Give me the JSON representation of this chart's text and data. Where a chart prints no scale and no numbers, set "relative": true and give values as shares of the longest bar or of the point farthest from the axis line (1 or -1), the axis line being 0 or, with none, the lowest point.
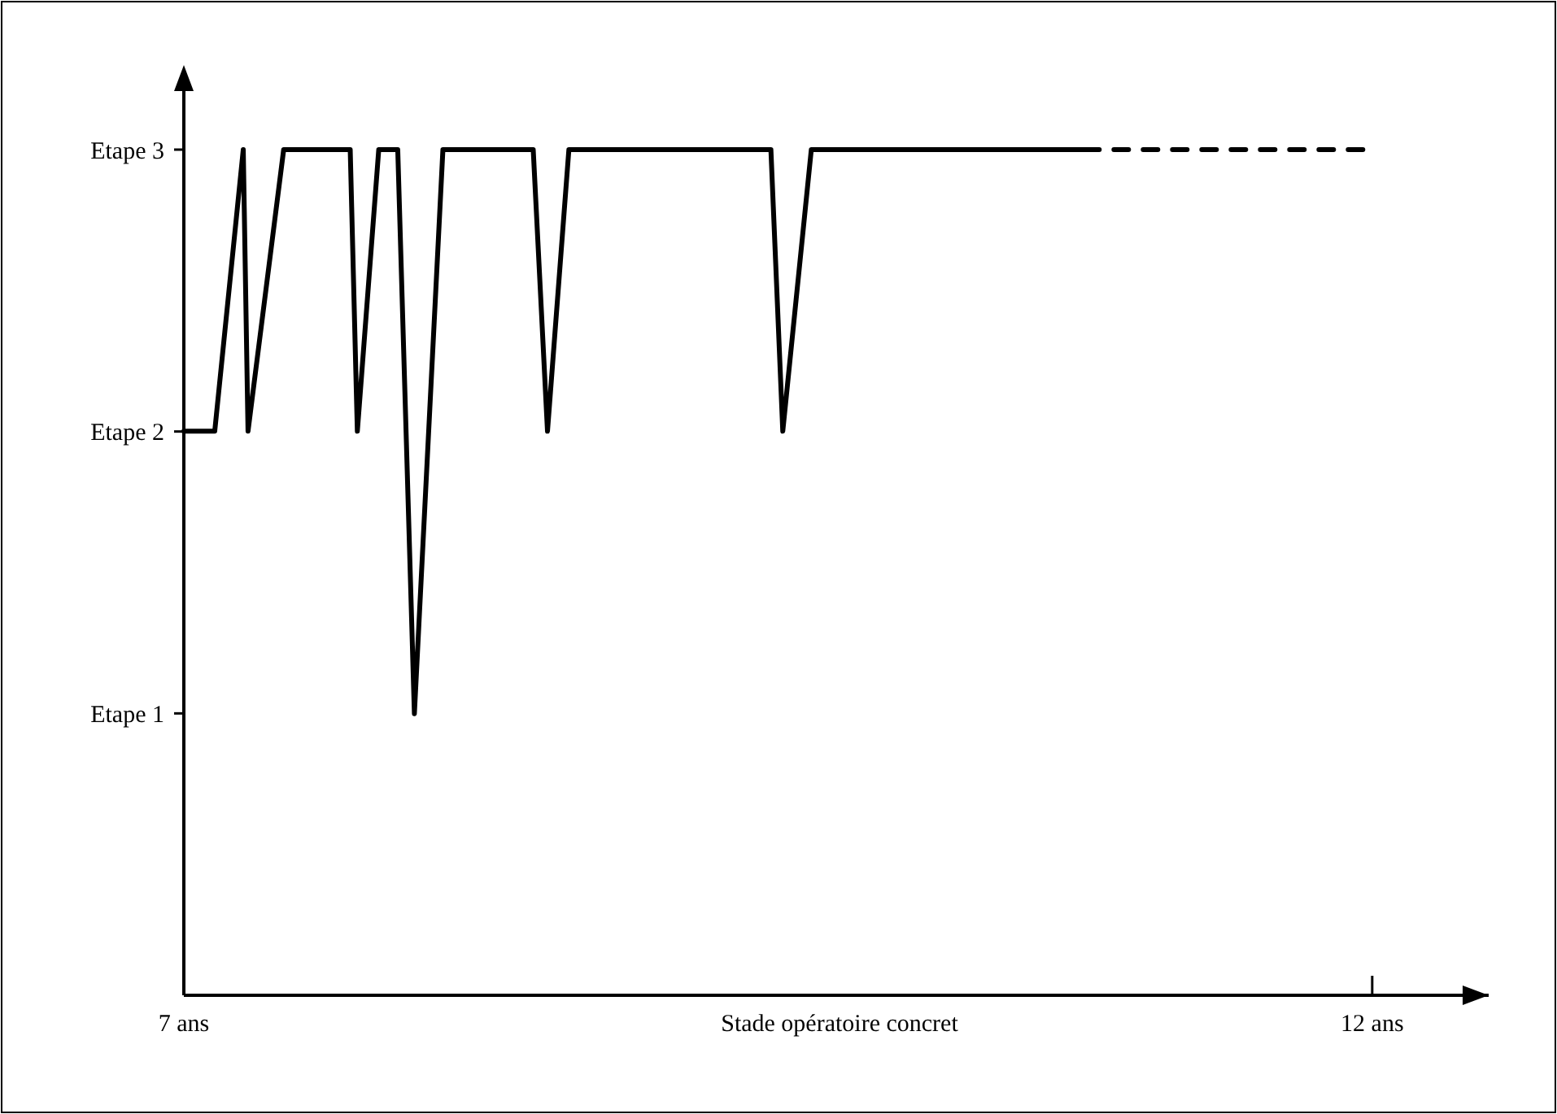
{
  "chart_data": {
    "type": "line",
    "xlabel": "Stade opératoire concret",
    "relative": true,
    "xlim": [
      7,
      12.49
    ],
    "xticks": [
      {
        "value": 7,
        "label": "7 ans"
      },
      {
        "value": 12,
        "label": "12 ans"
      }
    ],
    "annotations": [
      "Etape 1",
      "Etape 2",
      "Etape 3"
    ],
    "marker": "none",
    "series": [
      {
        "color": "#000000",
        "line_style": "solid",
        "x": [
          7,
          7.13,
          7.25,
          7.27,
          7.42,
          7.7,
          7.73,
          7.82,
          7.9,
          7.97,
          8.09,
          8.47,
          8.53,
          8.62,
          9.47,
          9.52,
          9.64,
          10.79
        ],
        "values": [
          0.667,
          0.667,
          1,
          0.667,
          1,
          1,
          0.667,
          1,
          1,
          0.333,
          1,
          1,
          0.667,
          1,
          1,
          0.667,
          1,
          1
        ]
      },
      {
        "color": "#000000",
        "line_style": "dashed",
        "x": [
          10.79,
          12
        ],
        "values": [
          1,
          1
        ]
      }
    ]
  }
}
